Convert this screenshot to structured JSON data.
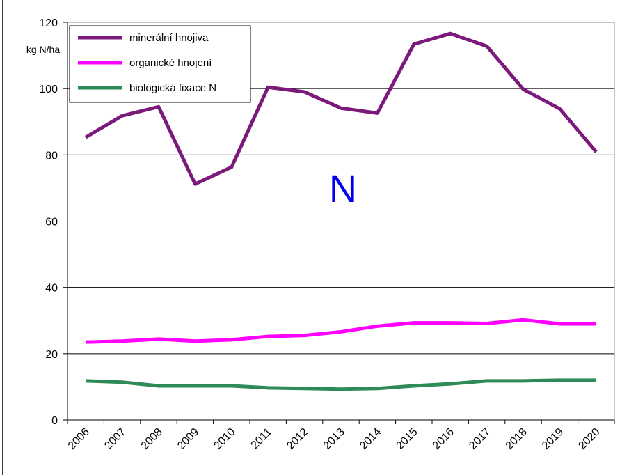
{
  "chart_data": {
    "type": "line",
    "y_label": "kg N/ha",
    "annotation": "N",
    "categories": [
      "2006",
      "2007",
      "2008",
      "2009",
      "2010",
      "2011",
      "2012",
      "2013",
      "2014",
      "2015",
      "2016",
      "2017",
      "2018",
      "2019",
      "2020"
    ],
    "series": [
      {
        "name": "minerální hnojiva",
        "color": "#7b1a7b",
        "values": [
          85.3,
          91.8,
          94.5,
          71.2,
          76.3,
          100.4,
          99,
          94.1,
          92.6,
          113.4,
          116.6,
          112.8,
          99.8,
          93.9,
          80.9
        ]
      },
      {
        "name": "organické hnojení",
        "color": "#ff00ff",
        "values": [
          23.5,
          23.8,
          24.4,
          23.8,
          24.2,
          25.2,
          25.5,
          26.6,
          28.3,
          29.3,
          29.3,
          29.1,
          30.2,
          29,
          29
        ]
      },
      {
        "name": "biologická fixace N",
        "color": "#2e8b57",
        "values": [
          11.8,
          11.4,
          10.3,
          10.3,
          10.3,
          9.7,
          9.5,
          9.3,
          9.5,
          10.3,
          10.9,
          11.8,
          11.8,
          12,
          12
        ]
      }
    ],
    "ylim": [
      0,
      120
    ],
    "yticks": [
      0,
      20,
      40,
      60,
      80,
      100,
      120
    ],
    "grid": true,
    "legend": "top-left"
  }
}
